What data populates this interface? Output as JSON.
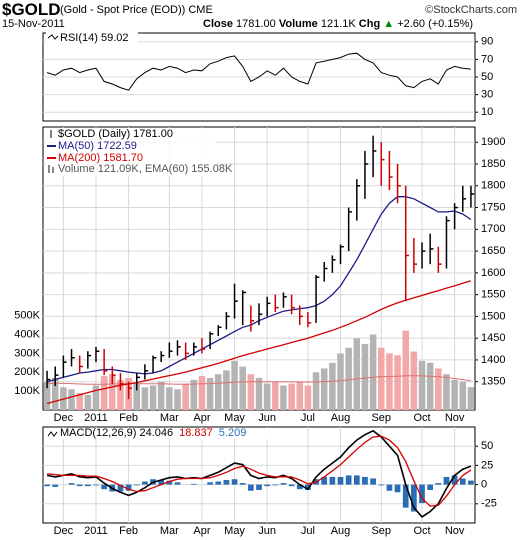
{
  "header": {
    "title": "$GOLD",
    "subtitle": "(Gold - Spot Price (EOD)) CME",
    "source": "©StockCharts.com",
    "date": "15-Nov-2011",
    "stats": [
      "Close",
      "1781.00",
      "Volume",
      "121.1K",
      "Chg",
      "+2.60 (+0.15%)"
    ]
  },
  "chart_data": [
    {
      "type": "rsi",
      "name": "RSI(14) 59.02",
      "color": "#000000",
      "grid": true,
      "ylim": [
        0,
        100
      ],
      "yticks": [
        10,
        30,
        50,
        70,
        90
      ],
      "values": [
        55,
        52,
        58,
        60,
        55,
        58,
        60,
        45,
        42,
        38,
        35,
        48,
        55,
        60,
        58,
        62,
        60,
        55,
        58,
        57,
        65,
        68,
        72,
        74,
        62,
        45,
        50,
        57,
        52,
        60,
        50,
        45,
        42,
        66,
        68,
        70,
        72,
        76,
        77,
        70,
        66,
        55,
        52,
        50,
        40,
        38,
        45,
        48,
        42,
        58,
        62,
        60,
        59.02
      ]
    },
    {
      "type": "candlestick",
      "name": "$GOLD (Daily) 1781.00",
      "color": "#000000",
      "down_color": "#cc0000",
      "grid": true,
      "categories": [
        null,
        null,
        "Dec",
        null,
        null,
        null,
        "2011",
        null,
        null,
        null,
        "Feb",
        null,
        null,
        null,
        null,
        "Mar",
        null,
        null,
        null,
        "Apr",
        null,
        null,
        null,
        "May",
        null,
        null,
        null,
        "Jun",
        null,
        null,
        null,
        null,
        "Jul",
        null,
        null,
        null,
        "Aug",
        null,
        null,
        null,
        null,
        "Sep",
        null,
        null,
        null,
        null,
        "Oct",
        null,
        null,
        null,
        "Nov",
        null,
        null
      ],
      "ylim": [
        1285,
        1935
      ],
      "yticks": [
        1350,
        1400,
        1450,
        1500,
        1550,
        1600,
        1650,
        1700,
        1750,
        1800,
        1850,
        1900
      ],
      "close": [
        1355,
        1365,
        1395,
        1405,
        1385,
        1410,
        1420,
        1375,
        1365,
        1345,
        1335,
        1360,
        1375,
        1405,
        1410,
        1420,
        1430,
        1415,
        1430,
        1425,
        1460,
        1475,
        1500,
        1535,
        1555,
        1490,
        1505,
        1530,
        1520,
        1545,
        1520,
        1500,
        1485,
        1590,
        1610,
        1630,
        1660,
        1740,
        1800,
        1850,
        1880,
        1860,
        1820,
        1800,
        1640,
        1620,
        1650,
        1655,
        1620,
        1720,
        1750,
        1770,
        1781
      ],
      "high": [
        1375,
        1385,
        1410,
        1425,
        1410,
        1420,
        1430,
        1425,
        1385,
        1370,
        1350,
        1370,
        1390,
        1410,
        1420,
        1440,
        1445,
        1440,
        1440,
        1450,
        1465,
        1480,
        1510,
        1575,
        1560,
        1525,
        1530,
        1545,
        1550,
        1555,
        1550,
        1525,
        1510,
        1595,
        1625,
        1640,
        1665,
        1750,
        1815,
        1880,
        1915,
        1900,
        1880,
        1850,
        1800,
        1680,
        1670,
        1690,
        1660,
        1730,
        1760,
        1800,
        1800
      ],
      "low": [
        1335,
        1340,
        1360,
        1385,
        1370,
        1380,
        1395,
        1365,
        1345,
        1330,
        1310,
        1330,
        1355,
        1370,
        1395,
        1405,
        1410,
        1400,
        1410,
        1415,
        1425,
        1455,
        1470,
        1495,
        1480,
        1465,
        1480,
        1500,
        1510,
        1520,
        1505,
        1480,
        1475,
        1485,
        1580,
        1600,
        1620,
        1650,
        1720,
        1770,
        1820,
        1800,
        1790,
        1760,
        1535,
        1600,
        1610,
        1620,
        1600,
        1610,
        1700,
        1740,
        1750
      ],
      "series": [
        {
          "name": "MA(50) 1722.59",
          "color": "#1c1c8a",
          "values": [
            1350,
            1355,
            1360,
            1365,
            1370,
            1372,
            1375,
            1378,
            1378,
            1375,
            1372,
            1370,
            1368,
            1370,
            1375,
            1385,
            1395,
            1405,
            1415,
            1425,
            1435,
            1445,
            1455,
            1465,
            1475,
            1480,
            1490,
            1498,
            1505,
            1512,
            1515,
            1518,
            1520,
            1525,
            1535,
            1550,
            1570,
            1600,
            1630,
            1665,
            1700,
            1735,
            1760,
            1775,
            1775,
            1770,
            1760,
            1750,
            1740,
            1740,
            1742,
            1735,
            1722.59
          ]
        },
        {
          "name": "MA(200) 1581.70",
          "color": "#d40000",
          "values": [
            1300,
            1305,
            1310,
            1315,
            1320,
            1325,
            1330,
            1334,
            1338,
            1342,
            1345,
            1348,
            1352,
            1356,
            1360,
            1364,
            1368,
            1372,
            1377,
            1382,
            1387,
            1392,
            1398,
            1404,
            1410,
            1415,
            1420,
            1425,
            1430,
            1435,
            1440,
            1445,
            1450,
            1456,
            1462,
            1468,
            1475,
            1482,
            1490,
            1498,
            1507,
            1516,
            1524,
            1531,
            1537,
            1543,
            1548,
            1554,
            1559,
            1565,
            1570,
            1576,
            1581.7
          ]
        }
      ],
      "volume": {
        "name": "Volume 121.09K, EMA(60) 155.08K",
        "color": "#b4b4b4",
        "down_color": "#f2a8a8",
        "ema_color": "#e07070",
        "ylim": [
          0,
          1500
        ],
        "yticks": [
          {
            "value": 100,
            "label": "100K"
          },
          {
            "value": 200,
            "label": "200K"
          },
          {
            "value": 300,
            "label": "300K"
          },
          {
            "value": 400,
            "label": "400K"
          },
          {
            "value": 500,
            "label": "500K"
          }
        ],
        "values": [
          150,
          170,
          120,
          110,
          90,
          80,
          130,
          180,
          190,
          160,
          170,
          140,
          120,
          130,
          150,
          120,
          110,
          140,
          160,
          180,
          170,
          190,
          210,
          260,
          230,
          190,
          170,
          140,
          150,
          130,
          140,
          150,
          130,
          200,
          220,
          250,
          300,
          330,
          380,
          350,
          400,
          330,
          300,
          290,
          420,
          310,
          260,
          250,
          220,
          190,
          160,
          150,
          121.09
        ],
        "ema": [
          140,
          141,
          141,
          140,
          138,
          136,
          136,
          137,
          138,
          139,
          140,
          140,
          139,
          139,
          139,
          138,
          137,
          137,
          138,
          139,
          140,
          142,
          144,
          147,
          149,
          150,
          150,
          150,
          150,
          149,
          149,
          149,
          148,
          149,
          151,
          153,
          156,
          160,
          165,
          169,
          174,
          177,
          178,
          179,
          182,
          182,
          181,
          179,
          176,
          172,
          167,
          161,
          155.08
        ]
      }
    },
    {
      "type": "macd",
      "grid": true,
      "categories": [
        null,
        null,
        "Dec",
        null,
        null,
        null,
        "2011",
        null,
        null,
        null,
        "Feb",
        null,
        null,
        null,
        null,
        "Mar",
        null,
        null,
        null,
        "Apr",
        null,
        null,
        null,
        "May",
        null,
        null,
        null,
        "Jun",
        null,
        null,
        null,
        null,
        "Jul",
        null,
        null,
        null,
        "Aug",
        null,
        null,
        null,
        null,
        "Sep",
        null,
        null,
        null,
        null,
        "Oct",
        null,
        null,
        null,
        "Nov",
        null,
        null
      ],
      "ylim": [
        -50,
        75
      ],
      "yticks": [
        -25,
        0,
        25,
        50
      ],
      "series": [
        {
          "name": "MACD(12,26,9) 24.046",
          "color": "#000000",
          "values": [
            12,
            10,
            12,
            14,
            10,
            9,
            10,
            2,
            -5,
            -10,
            -14,
            -10,
            -4,
            3,
            6,
            9,
            10,
            8,
            9,
            8,
            12,
            16,
            22,
            28,
            26,
            12,
            8,
            10,
            9,
            12,
            8,
            0,
            -6,
            10,
            20,
            28,
            36,
            48,
            58,
            65,
            70,
            62,
            50,
            38,
            0,
            -30,
            -42,
            -35,
            -25,
            -5,
            12,
            20,
            24.046
          ]
        },
        {
          "name": "18.837",
          "color": "#d40000",
          "values": [
            14,
            13,
            12,
            12,
            12,
            11,
            11,
            8,
            4,
            -1,
            -6,
            -9,
            -8,
            -4,
            0,
            4,
            7,
            8,
            8,
            8,
            9,
            12,
            16,
            21,
            24,
            20,
            15,
            12,
            10,
            10,
            10,
            6,
            1,
            3,
            10,
            18,
            26,
            36,
            46,
            55,
            62,
            63,
            58,
            48,
            30,
            5,
            -18,
            -28,
            -27,
            -15,
            0,
            12,
            18.837
          ]
        },
        {
          "name": "5.209",
          "color": "#2a6db5",
          "values": [
            -2,
            -3,
            0,
            2,
            -2,
            -2,
            -1,
            -6,
            -9,
            -9,
            -8,
            -1,
            4,
            7,
            6,
            5,
            3,
            0,
            1,
            0,
            3,
            4,
            6,
            7,
            2,
            -8,
            -7,
            -2,
            -1,
            2,
            -2,
            -6,
            -7,
            7,
            10,
            10,
            10,
            12,
            12,
            10,
            8,
            -1,
            -8,
            -10,
            -30,
            -35,
            -24,
            -7,
            2,
            10,
            12,
            8,
            5.209
          ]
        }
      ]
    }
  ]
}
